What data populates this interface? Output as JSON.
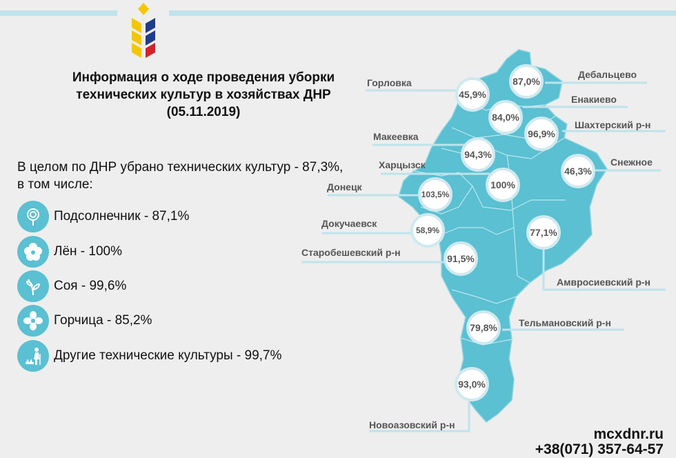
{
  "title": {
    "line1": "Информация о ходе проведения уборки",
    "line2": "технических культур в хозяйствах ДНР",
    "line3": "(05.11.2019)"
  },
  "summary": {
    "line1": "В целом по ДНР убрано технических культур - 87,3%,",
    "line2": "в том числе:"
  },
  "crops": [
    {
      "label": "Подсолнечник - 87,1%",
      "icon": "sunflower-icon"
    },
    {
      "label": "Лён - 100%",
      "icon": "flax-flower-icon"
    },
    {
      "label": "Соя - 99,6%",
      "icon": "soy-sprout-icon"
    },
    {
      "label": "Горчица - 85,2%",
      "icon": "mustard-flower-icon"
    },
    {
      "label": "Другие технические культуры - 99,7%",
      "icon": "farmer-icon"
    }
  ],
  "districts": [
    {
      "name": "Горловка",
      "value": "45,9%"
    },
    {
      "name": "Дебальцево",
      "value": "87,0%"
    },
    {
      "name": "Енакиево",
      "value": "84,0%"
    },
    {
      "name": "Шахтерский р-н",
      "value": "96,9%"
    },
    {
      "name": "Макеевка",
      "value": "94,3%"
    },
    {
      "name": "Снежное",
      "value": "46,3%"
    },
    {
      "name": "Харцызск",
      "value": "100%"
    },
    {
      "name": "Донецк",
      "value": "103,5%"
    },
    {
      "name": "Докучаевск",
      "value": "58,9%"
    },
    {
      "name": "Старобешевский р-н",
      "value": "91,5%"
    },
    {
      "name": "Амвросиевский р-н",
      "value": "77,1%"
    },
    {
      "name": "Тельмановский р-н",
      "value": "79,8%"
    },
    {
      "name": "Новоазовский р-н",
      "value": "93,0%"
    }
  ],
  "contacts": {
    "site": "mcxdnr.ru",
    "phone": "+38(071) 357-64-57"
  },
  "colors": {
    "map_fill": "#5ac0d2",
    "leader_line": "#bfe3ec",
    "logo_yellow": "#f6c600",
    "logo_blue": "#1f3c8c",
    "logo_red": "#d2232a"
  }
}
